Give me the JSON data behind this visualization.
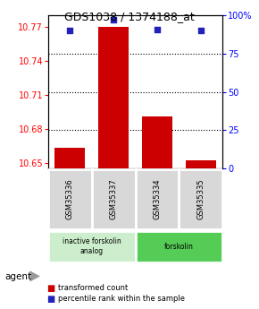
{
  "title": "GDS1038 / 1374188_at",
  "samples": [
    "GSM35336",
    "GSM35337",
    "GSM35334",
    "GSM35335"
  ],
  "bar_values": [
    10.663,
    10.77,
    10.691,
    10.652
  ],
  "percentile_values": [
    90,
    97,
    91,
    90
  ],
  "ylim_left": [
    10.645,
    10.78
  ],
  "yticks_left": [
    10.65,
    10.68,
    10.71,
    10.74,
    10.77
  ],
  "yticks_right": [
    0,
    25,
    50,
    75,
    100
  ],
  "bar_color": "#cc0000",
  "dot_color": "#2222bb",
  "bar_width": 0.7,
  "base_value": 10.645,
  "groups": [
    {
      "label": "inactive forskolin\nanalog",
      "color": "#cceecc",
      "samples": [
        0,
        1
      ]
    },
    {
      "label": "forskolin",
      "color": "#55cc55",
      "samples": [
        2,
        3
      ]
    }
  ],
  "agent_label": "agent",
  "legend_red": "transformed count",
  "legend_blue": "percentile rank within the sample",
  "fig_width": 2.9,
  "fig_height": 3.45,
  "dpi": 100
}
